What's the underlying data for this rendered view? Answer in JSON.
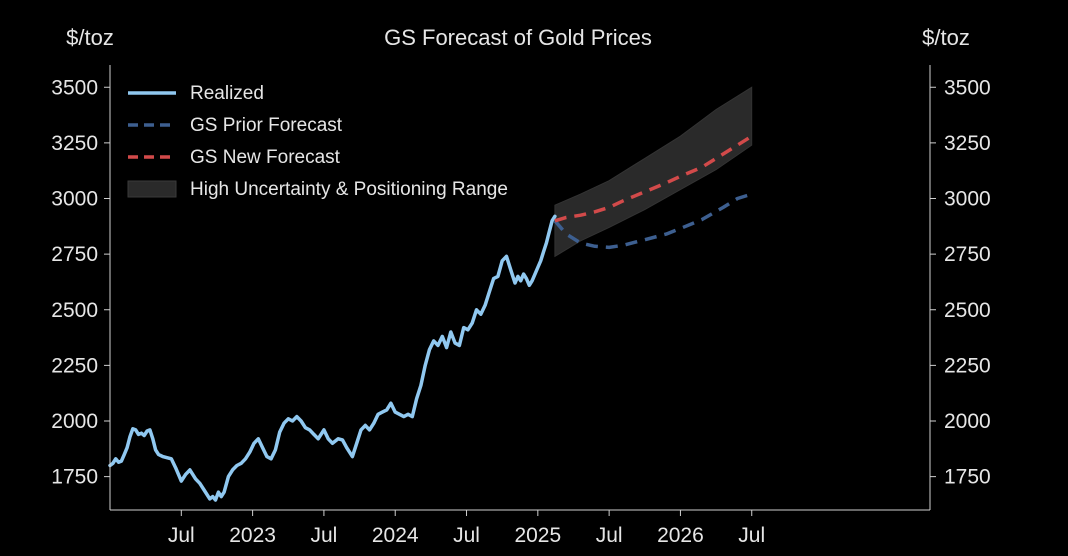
{
  "chart_data": {
    "type": "line",
    "title": "GS Forecast of Gold Prices",
    "ylabel_left": "$/toz",
    "ylabel_right": "$/toz",
    "ylim": [
      1600,
      3600
    ],
    "xlim": [
      2022.0,
      2027.75
    ],
    "yticks": [
      1750,
      2000,
      2250,
      2500,
      2750,
      3000,
      3250,
      3500
    ],
    "xticks": [
      {
        "value": 2022.5,
        "label": "Jul"
      },
      {
        "value": 2023.0,
        "label": "2023"
      },
      {
        "value": 2023.5,
        "label": "Jul"
      },
      {
        "value": 2024.0,
        "label": "2024"
      },
      {
        "value": 2024.5,
        "label": "Jul"
      },
      {
        "value": 2025.0,
        "label": "2025"
      },
      {
        "value": 2025.5,
        "label": "Jul"
      },
      {
        "value": 2026.0,
        "label": "2026"
      },
      {
        "value": 2026.5,
        "label": "Jul"
      }
    ],
    "grid": false,
    "legend_position": "top-left",
    "series": [
      {
        "name": "Realized",
        "color": "#90c8f0",
        "style": "solid",
        "x": [
          2022.0,
          2022.02,
          2022.04,
          2022.06,
          2022.08,
          2022.1,
          2022.12,
          2022.14,
          2022.16,
          2022.18,
          2022.2,
          2022.22,
          2022.24,
          2022.26,
          2022.28,
          2022.3,
          2022.32,
          2022.34,
          2022.37,
          2022.4,
          2022.43,
          2022.46,
          2022.5,
          2022.53,
          2022.56,
          2022.6,
          2022.63,
          2022.66,
          2022.7,
          2022.72,
          2022.74,
          2022.76,
          2022.78,
          2022.8,
          2022.83,
          2022.86,
          2022.89,
          2022.92,
          2022.95,
          2022.98,
          2023.01,
          2023.04,
          2023.07,
          2023.1,
          2023.13,
          2023.16,
          2023.19,
          2023.22,
          2023.25,
          2023.28,
          2023.31,
          2023.34,
          2023.37,
          2023.4,
          2023.43,
          2023.46,
          2023.5,
          2023.53,
          2023.56,
          2023.6,
          2023.63,
          2023.66,
          2023.7,
          2023.73,
          2023.76,
          2023.79,
          2023.82,
          2023.85,
          2023.88,
          2023.91,
          2023.94,
          2023.97,
          2024.0,
          2024.03,
          2024.06,
          2024.09,
          2024.12,
          2024.15,
          2024.18,
          2024.21,
          2024.24,
          2024.27,
          2024.3,
          2024.33,
          2024.36,
          2024.39,
          2024.42,
          2024.45,
          2024.48,
          2024.51,
          2024.54,
          2024.57,
          2024.6,
          2024.63,
          2024.66,
          2024.69,
          2024.72,
          2024.75,
          2024.78,
          2024.81,
          2024.84,
          2024.86,
          2024.88,
          2024.9,
          2024.92,
          2024.94,
          2024.96,
          2024.98,
          2025.0,
          2025.02,
          2025.04,
          2025.06,
          2025.08,
          2025.1,
          2025.12
        ],
        "values": [
          1800,
          1810,
          1830,
          1815,
          1820,
          1850,
          1880,
          1930,
          1965,
          1960,
          1940,
          1945,
          1935,
          1955,
          1960,
          1920,
          1870,
          1850,
          1840,
          1835,
          1830,
          1790,
          1730,
          1760,
          1780,
          1740,
          1720,
          1690,
          1650,
          1660,
          1645,
          1680,
          1660,
          1680,
          1750,
          1780,
          1800,
          1810,
          1830,
          1860,
          1900,
          1920,
          1880,
          1840,
          1830,
          1870,
          1950,
          1990,
          2010,
          2000,
          2020,
          2000,
          1970,
          1960,
          1940,
          1920,
          1960,
          1920,
          1900,
          1920,
          1915,
          1880,
          1840,
          1900,
          1960,
          1980,
          1960,
          1990,
          2030,
          2040,
          2050,
          2080,
          2040,
          2030,
          2020,
          2030,
          2020,
          2100,
          2160,
          2250,
          2320,
          2360,
          2340,
          2380,
          2330,
          2400,
          2350,
          2340,
          2420,
          2410,
          2440,
          2500,
          2480,
          2520,
          2580,
          2640,
          2650,
          2720,
          2740,
          2680,
          2620,
          2650,
          2630,
          2660,
          2640,
          2610,
          2630,
          2660,
          2690,
          2720,
          2760,
          2800,
          2850,
          2900,
          2920
        ]
      },
      {
        "name": "GS Prior Forecast",
        "color": "#3d5f90",
        "style": "dashed",
        "x": [
          2025.12,
          2025.2,
          2025.3,
          2025.4,
          2025.5,
          2025.6,
          2025.75,
          2025.9,
          2026.0,
          2026.15,
          2026.3,
          2026.4,
          2026.5
        ],
        "values": [
          2900,
          2840,
          2800,
          2785,
          2780,
          2790,
          2815,
          2840,
          2865,
          2905,
          2960,
          3000,
          3020
        ]
      },
      {
        "name": "GS New Forecast",
        "color": "#d24a4a",
        "style": "dashed",
        "x": [
          2025.12,
          2025.2,
          2025.3,
          2025.4,
          2025.5,
          2025.6,
          2025.75,
          2025.9,
          2026.0,
          2026.15,
          2026.3,
          2026.4,
          2026.5
        ],
        "values": [
          2900,
          2915,
          2925,
          2940,
          2960,
          2990,
          3030,
          3070,
          3100,
          3140,
          3200,
          3240,
          3280
        ]
      },
      {
        "name": "High Uncertainty & Positioning Range",
        "type": "band",
        "color": "#2a2a2a",
        "x": [
          2025.12,
          2025.3,
          2025.5,
          2025.75,
          2026.0,
          2026.25,
          2026.5
        ],
        "lower": [
          2740,
          2810,
          2870,
          2950,
          3040,
          3130,
          3240
        ],
        "upper": [
          2970,
          3020,
          3080,
          3180,
          3280,
          3400,
          3500
        ]
      }
    ]
  }
}
